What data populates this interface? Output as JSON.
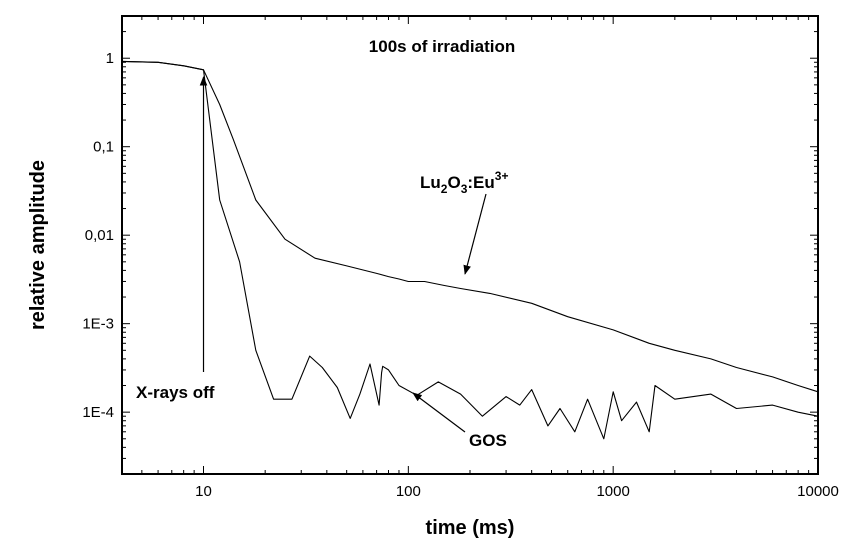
{
  "chart_data": {
    "type": "line",
    "title": "100s of irradiation",
    "xlabel": "time (ms)",
    "ylabel": "relative amplitude",
    "xscale": "log",
    "yscale": "log",
    "xlim": [
      4,
      10000
    ],
    "ylim": [
      2e-05,
      3
    ],
    "grid": false,
    "x_ticks": [
      {
        "value": 10,
        "label": "10"
      },
      {
        "value": 100,
        "label": "100"
      },
      {
        "value": 1000,
        "label": "1000"
      },
      {
        "value": 10000,
        "label": "10000"
      }
    ],
    "y_ticks": [
      {
        "value": 1,
        "label": "1"
      },
      {
        "value": 0.1,
        "label": "0,1"
      },
      {
        "value": 0.01,
        "label": "0,01"
      },
      {
        "value": 0.001,
        "label": "1E-3"
      },
      {
        "value": 0.0001,
        "label": "1E-4"
      }
    ],
    "series": [
      {
        "label_parts": {
          "base": "Lu",
          "sub1": "2",
          "mid": "O",
          "sub2": "3",
          "tail": ":Eu",
          "sup": "3+"
        },
        "x": [
          4,
          6,
          8,
          10,
          12,
          14,
          18,
          25,
          35,
          50,
          70,
          80,
          90,
          100,
          120,
          150,
          180,
          250,
          400,
          600,
          1000,
          1500,
          2000,
          3000,
          4000,
          6000,
          8000,
          10000
        ],
        "y": [
          0.92,
          0.9,
          0.82,
          0.74,
          0.3,
          0.12,
          0.025,
          0.009,
          0.0055,
          0.0045,
          0.0037,
          0.0034,
          0.0032,
          0.003,
          0.003,
          0.0027,
          0.0025,
          0.0022,
          0.0017,
          0.0012,
          0.00085,
          0.0006,
          0.0005,
          0.0004,
          0.00032,
          0.00025,
          0.0002,
          0.00017
        ]
      },
      {
        "label": "GOS",
        "x": [
          4,
          6,
          8,
          10,
          12,
          15,
          18,
          22,
          27,
          33,
          38,
          45,
          52,
          58,
          65,
          72,
          74,
          75,
          80,
          90,
          110,
          140,
          180,
          230,
          300,
          350,
          400,
          480,
          550,
          650,
          750,
          900,
          1000,
          1100,
          1300,
          1500,
          1600,
          2000,
          3000,
          4000,
          6000,
          8000,
          10000
        ],
        "y": [
          0.92,
          0.9,
          0.82,
          0.74,
          0.025,
          0.005,
          0.0005,
          0.00014,
          0.00014,
          0.00043,
          0.00032,
          0.00019,
          8.5e-05,
          0.00016,
          0.00035,
          0.00012,
          0.00028,
          0.00033,
          0.0003,
          0.0002,
          0.000155,
          0.00022,
          0.00016,
          9e-05,
          0.00015,
          0.00012,
          0.00018,
          7e-05,
          0.00011,
          6e-05,
          0.00014,
          5e-05,
          0.00017,
          8e-05,
          0.00013,
          6e-05,
          0.0002,
          0.00014,
          0.00016,
          0.00011,
          0.00012,
          0.0001,
          9e-05
        ]
      }
    ],
    "annotations": [
      {
        "text": "X-rays off"
      },
      {
        "text": "GOS"
      }
    ]
  }
}
